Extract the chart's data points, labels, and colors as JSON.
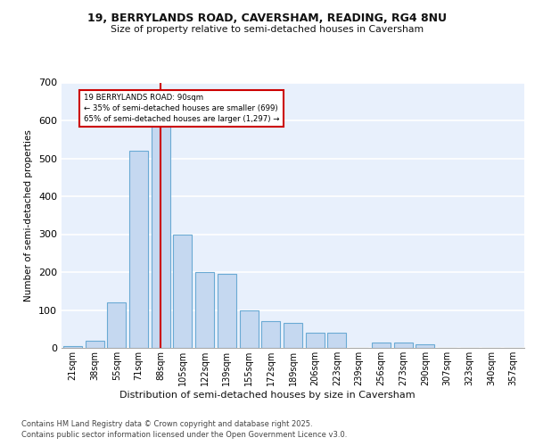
{
  "title1": "19, BERRYLANDS ROAD, CAVERSHAM, READING, RG4 8NU",
  "title2": "Size of property relative to semi-detached houses in Caversham",
  "xlabel": "Distribution of semi-detached houses by size in Caversham",
  "ylabel": "Number of semi-detached properties",
  "categories": [
    "21sqm",
    "38sqm",
    "55sqm",
    "71sqm",
    "88sqm",
    "105sqm",
    "122sqm",
    "139sqm",
    "155sqm",
    "172sqm",
    "189sqm",
    "206sqm",
    "223sqm",
    "239sqm",
    "256sqm",
    "273sqm",
    "290sqm",
    "307sqm",
    "323sqm",
    "340sqm",
    "357sqm"
  ],
  "values": [
    5,
    20,
    120,
    520,
    620,
    300,
    200,
    195,
    100,
    70,
    65,
    40,
    40,
    0,
    15,
    15,
    10,
    0,
    0,
    0,
    0
  ],
  "bar_color": "#c5d8f0",
  "bar_edge_color": "#6aaad4",
  "vline_color": "#cc0000",
  "annotation_box_color": "#cc0000",
  "property_line_label": "19 BERRYLANDS ROAD: 90sqm",
  "smaller_pct": "35%",
  "smaller_count": 699,
  "larger_pct": "65%",
  "larger_count": "1,297",
  "ylim": [
    0,
    700
  ],
  "yticks": [
    0,
    100,
    200,
    300,
    400,
    500,
    600,
    700
  ],
  "bg_color": "#e8f0fc",
  "grid_color": "#ffffff",
  "footer1": "Contains HM Land Registry data © Crown copyright and database right 2025.",
  "footer2": "Contains public sector information licensed under the Open Government Licence v3.0."
}
